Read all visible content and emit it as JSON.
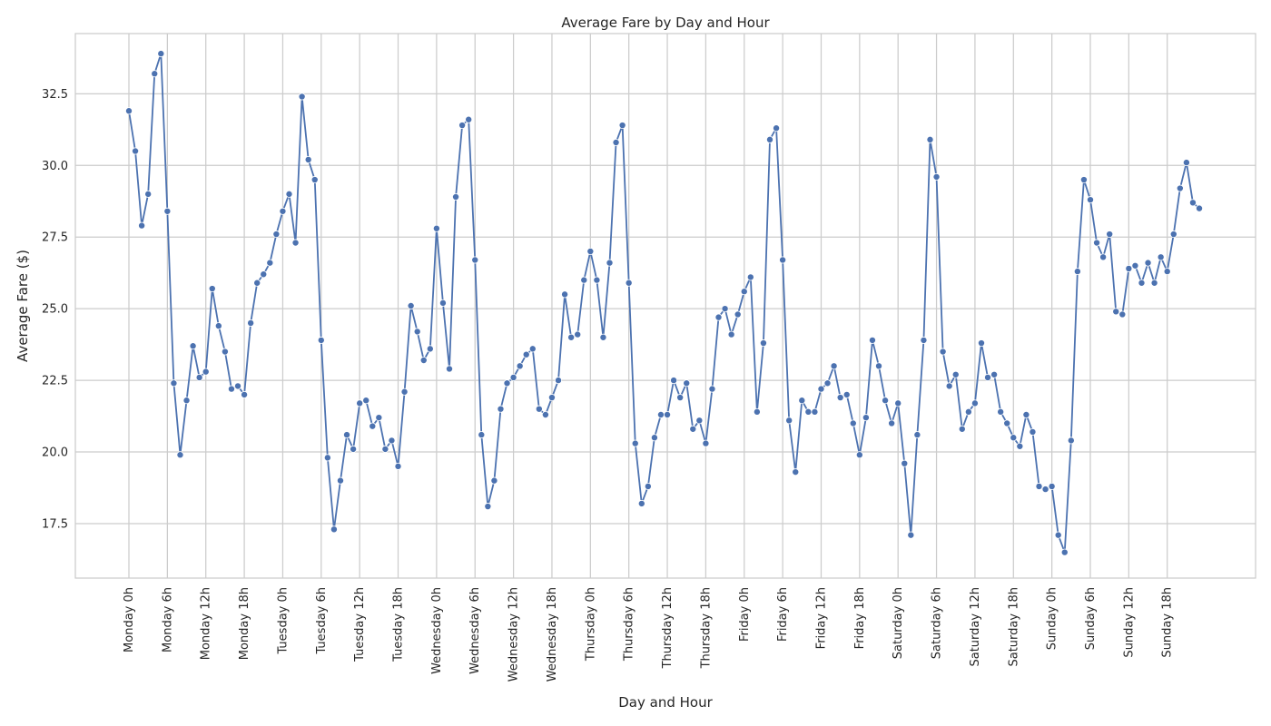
{
  "chart_data": {
    "type": "line",
    "title": "Average Fare by Day and Hour",
    "xlabel": "Day and Hour",
    "ylabel": "Average Fare ($)",
    "ylim": [
      15.6,
      34.6
    ],
    "yticks": [
      "17.5",
      "20.0",
      "22.5",
      "25.0",
      "27.5",
      "30.0",
      "32.5"
    ],
    "xticks": [
      "Monday 0h",
      "Monday 6h",
      "Monday 12h",
      "Monday 18h",
      "Tuesday 0h",
      "Tuesday 6h",
      "Tuesday 12h",
      "Tuesday 18h",
      "Wednesday 0h",
      "Wednesday 6h",
      "Wednesday 12h",
      "Wednesday 18h",
      "Thursday 0h",
      "Thursday 6h",
      "Thursday 12h",
      "Thursday 18h",
      "Friday 0h",
      "Friday 6h",
      "Friday 12h",
      "Friday 18h",
      "Saturday 0h",
      "Saturday 6h",
      "Saturday 12h",
      "Saturday 18h",
      "Sunday 0h",
      "Sunday 6h",
      "Sunday 12h",
      "Sunday 18h"
    ],
    "grid": true,
    "colors": {
      "line": "#4c72b0",
      "grid": "#cccccc",
      "frame": "#cccccc"
    },
    "series": [
      {
        "values": [
          31.9,
          30.5,
          27.9,
          29.0,
          33.2,
          33.9,
          28.4,
          22.4,
          19.9,
          21.8,
          23.7,
          22.6,
          22.8,
          25.7,
          24.4,
          23.5,
          22.2,
          22.3,
          22.0,
          24.5,
          25.9,
          26.2,
          26.6,
          27.6,
          28.4,
          29.0,
          27.3,
          32.4,
          30.2,
          29.5,
          23.9,
          19.8,
          17.3,
          19.0,
          20.6,
          20.1,
          21.7,
          21.8,
          20.9,
          21.2,
          20.1,
          20.4,
          19.5,
          22.1,
          25.1,
          24.2,
          23.2,
          23.6,
          27.8,
          25.2,
          22.9,
          28.9,
          31.4,
          31.6,
          26.7,
          20.6,
          18.1,
          19.0,
          21.5,
          22.4,
          22.6,
          23.0,
          23.4,
          23.6,
          21.5,
          21.3,
          21.9,
          22.5,
          25.5,
          24.0,
          24.1,
          26.0,
          27.0,
          26.0,
          24.0,
          26.6,
          30.8,
          31.4,
          25.9,
          20.3,
          18.2,
          18.8,
          20.5,
          21.3,
          21.3,
          22.5,
          21.9,
          22.4,
          20.8,
          21.1,
          20.3,
          22.2,
          24.7,
          25.0,
          24.1,
          24.8,
          25.6,
          26.1,
          21.4,
          23.8,
          30.9,
          31.3,
          26.7,
          21.1,
          19.3,
          21.8,
          21.4,
          21.4,
          22.2,
          22.4,
          23.0,
          21.9,
          22.0,
          21.0,
          19.9,
          21.2,
          23.9,
          23.0,
          21.8,
          21.0,
          21.7,
          19.6,
          17.1,
          20.6,
          23.9,
          30.9,
          29.6,
          23.5,
          22.3,
          22.7,
          20.8,
          21.4,
          21.7,
          23.8,
          22.6,
          22.7,
          21.4,
          21.0,
          20.5,
          20.2,
          21.3,
          20.7,
          18.8,
          18.7,
          18.8,
          17.1,
          16.5,
          20.4,
          26.3,
          29.5,
          28.8,
          27.3,
          26.8,
          27.6,
          24.9,
          24.8,
          26.4,
          26.5,
          25.9,
          26.6,
          25.9,
          26.8,
          26.3,
          27.6,
          29.2,
          30.1,
          28.7,
          28.5
        ]
      }
    ]
  }
}
